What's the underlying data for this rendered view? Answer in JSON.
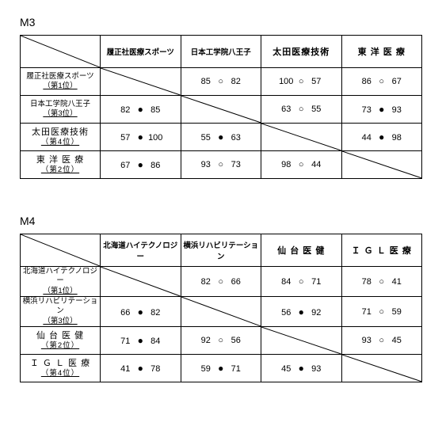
{
  "groups": [
    {
      "title": "M3",
      "teams": [
        {
          "name": "履正社医療スポーツ",
          "rank": "（第1位）",
          "big": false
        },
        {
          "name": "日本工学院八王子",
          "rank": "（第3位）",
          "big": false
        },
        {
          "name": "太田医療技術",
          "rank": "（第4位）",
          "big": true
        },
        {
          "name": "東 洋 医 療",
          "rank": "（第2位）",
          "big": true
        }
      ],
      "matrix": [
        [
          null,
          {
            "a": 85,
            "m": "o",
            "b": 82
          },
          {
            "a": 100,
            "m": "o",
            "b": 57
          },
          {
            "a": 86,
            "m": "o",
            "b": 67
          }
        ],
        [
          {
            "a": 82,
            "m": "f",
            "b": 85
          },
          null,
          {
            "a": 63,
            "m": "o",
            "b": 55
          },
          {
            "a": 73,
            "m": "f",
            "b": 93
          }
        ],
        [
          {
            "a": 57,
            "m": "f",
            "b": 100
          },
          {
            "a": 55,
            "m": "f",
            "b": 63
          },
          null,
          {
            "a": 44,
            "m": "f",
            "b": 98
          }
        ],
        [
          {
            "a": 67,
            "m": "f",
            "b": 86
          },
          {
            "a": 93,
            "m": "o",
            "b": 73
          },
          {
            "a": 98,
            "m": "o",
            "b": 44
          },
          null
        ]
      ]
    },
    {
      "title": "M4",
      "teams": [
        {
          "name": "北海道ハイテクノロジー",
          "rank": "（第1位）",
          "big": false
        },
        {
          "name": "横浜リハビリテーション",
          "rank": "（第3位）",
          "big": false
        },
        {
          "name": "仙 台 医 健",
          "rank": "（第2位）",
          "big": true
        },
        {
          "name": "Ｉ Ｇ Ｌ 医 療",
          "rank": "（第4位）",
          "big": true
        }
      ],
      "matrix": [
        [
          null,
          {
            "a": 82,
            "m": "o",
            "b": 66
          },
          {
            "a": 84,
            "m": "o",
            "b": 71
          },
          {
            "a": 78,
            "m": "o",
            "b": 41
          }
        ],
        [
          {
            "a": 66,
            "m": "f",
            "b": 82
          },
          null,
          {
            "a": 56,
            "m": "f",
            "b": 92
          },
          {
            "a": 71,
            "m": "o",
            "b": 59
          }
        ],
        [
          {
            "a": 71,
            "m": "f",
            "b": 84
          },
          {
            "a": 92,
            "m": "o",
            "b": 56
          },
          null,
          {
            "a": 93,
            "m": "o",
            "b": 45
          }
        ],
        [
          {
            "a": 41,
            "m": "f",
            "b": 78
          },
          {
            "a": 59,
            "m": "f",
            "b": 71
          },
          {
            "a": 45,
            "m": "f",
            "b": 93
          },
          null
        ]
      ]
    }
  ]
}
